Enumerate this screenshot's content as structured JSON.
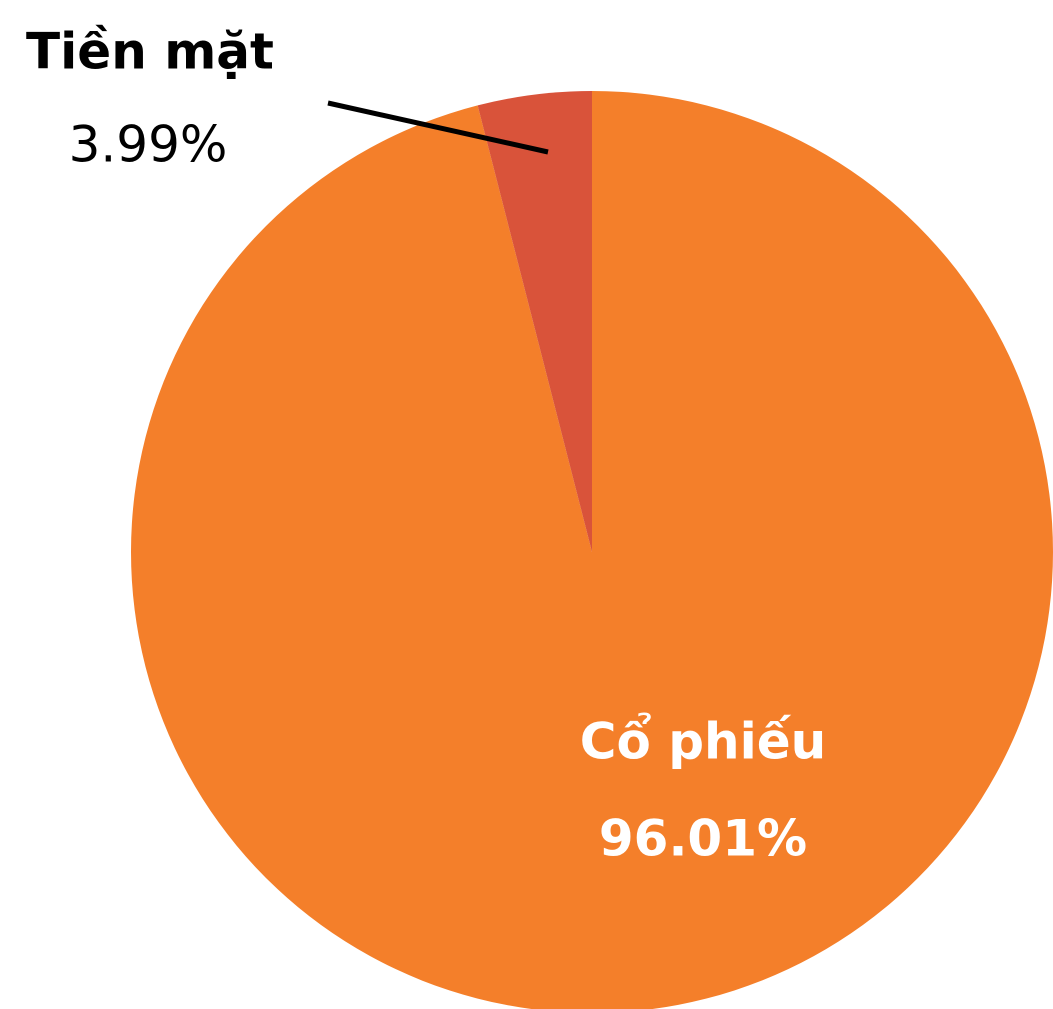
{
  "chart_data": {
    "type": "pie",
    "categories": [
      "Cổ phiếu",
      "Tiền mặt"
    ],
    "values": [
      96.01,
      3.99
    ],
    "value_labels": [
      "96.01%",
      "3.99%"
    ],
    "colors": [
      "#f47f2a",
      "#d9533a"
    ]
  }
}
